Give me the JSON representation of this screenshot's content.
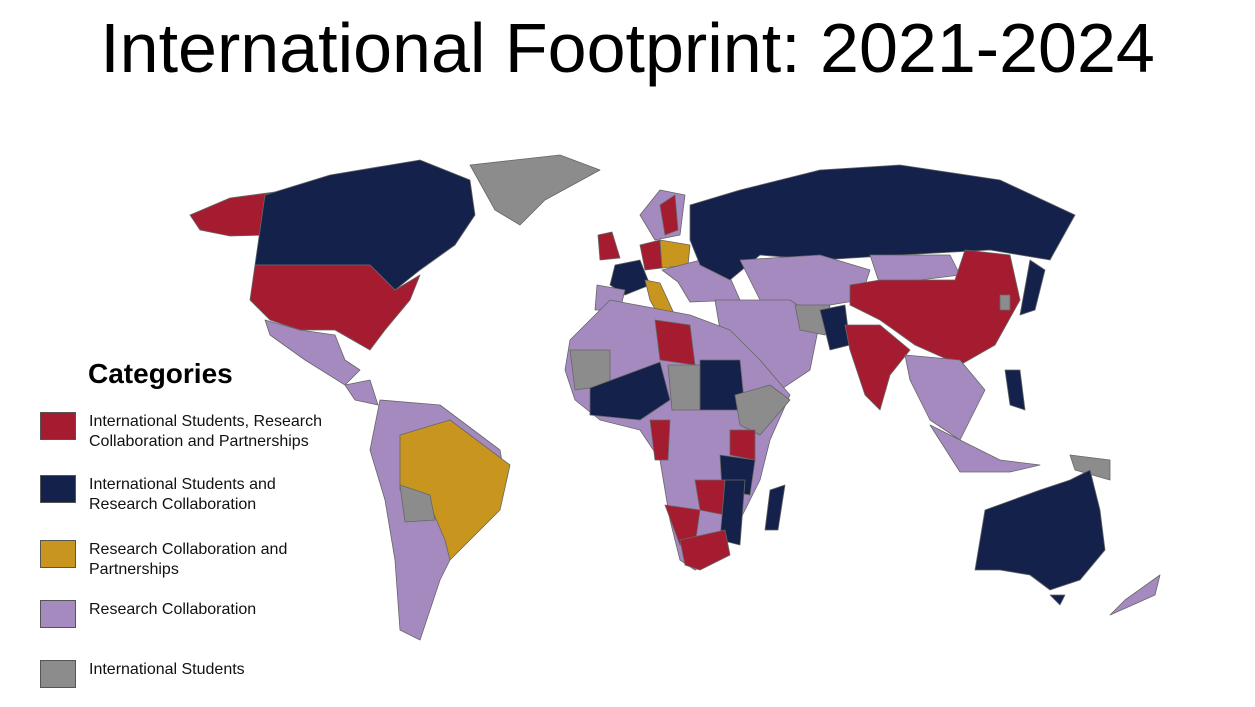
{
  "title": "International Footprint: 2021-2024",
  "legend": {
    "title": "Categories",
    "items": [
      {
        "label": "International Students, Research Collaboration and Partnerships",
        "color": "#a51c30"
      },
      {
        "label": "International Students and Research Collaboration",
        "color": "#14214b"
      },
      {
        "label": "Research Collaboration and Partnerships",
        "color": "#c8961e"
      },
      {
        "label": "Research Collaboration",
        "color": "#a58ac0"
      },
      {
        "label": "International Students",
        "color": "#8c8c8c"
      }
    ]
  }
}
